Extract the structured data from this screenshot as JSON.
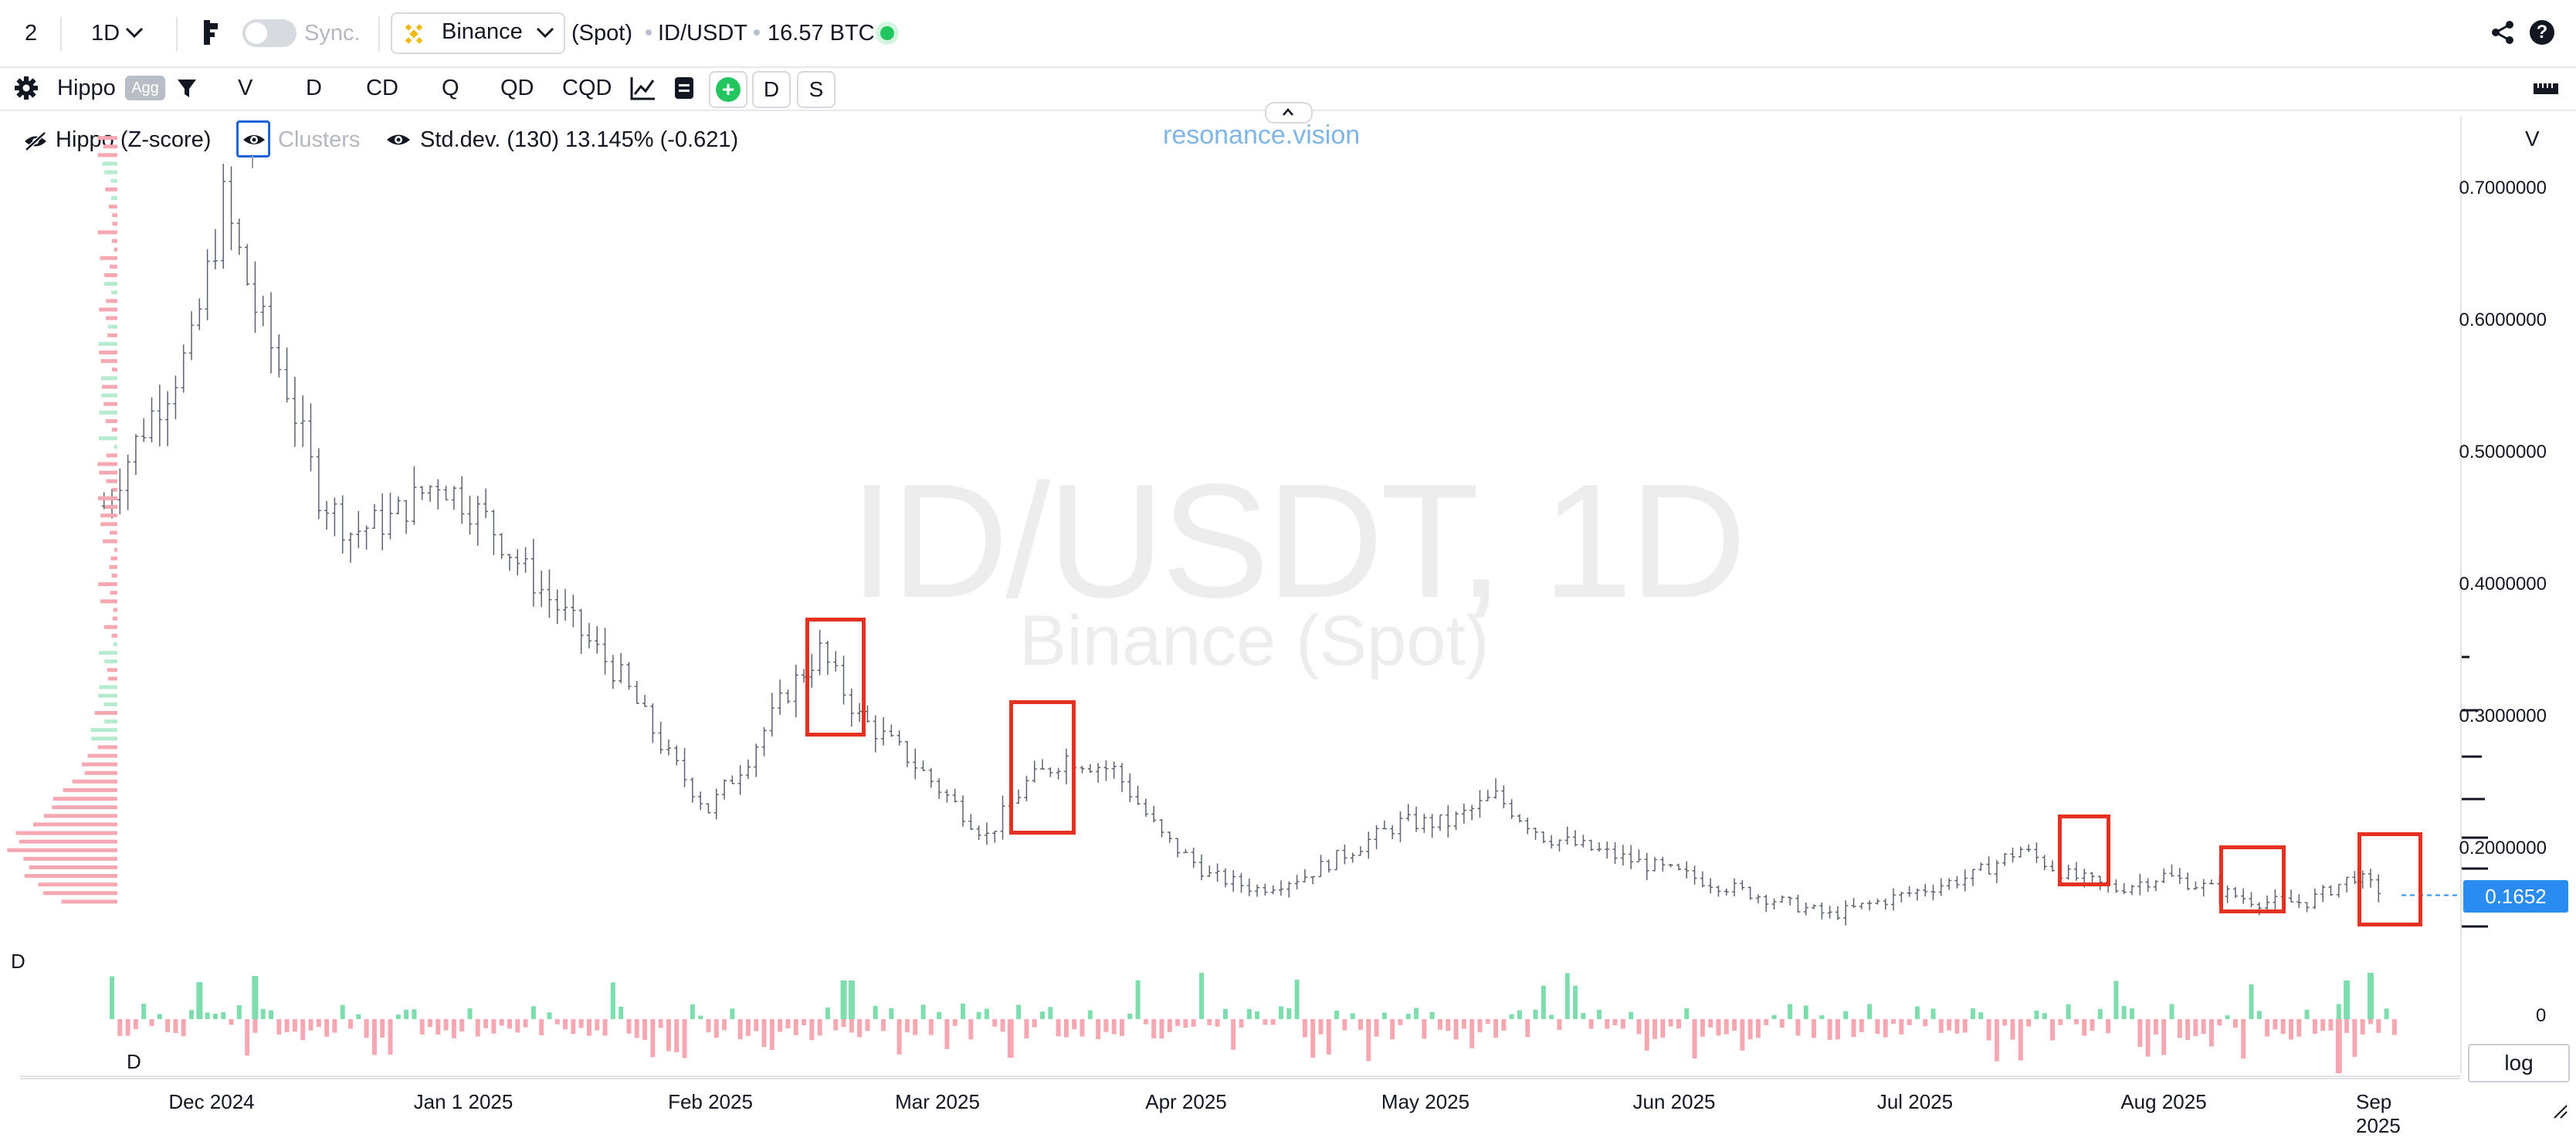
{
  "topbar": {
    "layout_count": "2",
    "interval": "1D",
    "sync_label": "Sync.",
    "exchange": "Binance",
    "market": "(Spot)",
    "pair": "ID/USDT",
    "volume": "16.57 BTC",
    "status_color": "#22c55e"
  },
  "toolbar": {
    "indicator": "Hippo",
    "agg_badge": "Agg",
    "tabs": [
      "V",
      "D",
      "CD",
      "Q",
      "QD",
      "CQD"
    ],
    "d_button": "D",
    "s_button": "S"
  },
  "legend": {
    "hippo": "Hippo (Z-score)",
    "clusters": "Clusters",
    "stddev": "Std.dev. (130) 13.145% (-0.621)",
    "brand": "resonance.vision"
  },
  "watermark": {
    "title": "ID/USDT, 1D",
    "subtitle": "Binance (Spot)"
  },
  "price_axis": {
    "unit_label": "V",
    "ticks": [
      "0.7000000",
      "0.6000000",
      "0.5000000",
      "0.4000000",
      "0.3000000",
      "0.2000000"
    ],
    "current_price": "0.1652",
    "subpane_zero": "0",
    "log_button": "log"
  },
  "subpane": {
    "label_top": "D",
    "label_bottom": "D"
  },
  "time_axis": {
    "ticks": [
      "Dec 2024",
      "Jan 1 2025",
      "Feb 2025",
      "Mar 2025",
      "Apr 2025",
      "May 2025",
      "Jun 2025",
      "Jul 2025",
      "Aug 2025",
      "Sep 2025"
    ]
  },
  "chart_data": {
    "type": "line",
    "title": "ID/USDT, 1D",
    "ylim": [
      0.13,
      0.74
    ],
    "x": [
      "2024-11-20",
      "2024-11-25",
      "2024-12-01",
      "2024-12-05",
      "2024-12-09",
      "2024-12-13",
      "2024-12-17",
      "2024-12-21",
      "2024-12-26",
      "2025-01-01",
      "2025-01-07",
      "2025-01-12",
      "2025-01-18",
      "2025-01-24",
      "2025-01-30",
      "2025-02-04",
      "2025-02-09",
      "2025-02-14",
      "2025-02-18",
      "2025-02-23",
      "2025-03-01",
      "2025-03-06",
      "2025-03-11",
      "2025-03-16",
      "2025-03-21",
      "2025-03-27",
      "2025-04-02",
      "2025-04-08",
      "2025-04-14",
      "2025-04-20",
      "2025-04-26",
      "2025-05-02",
      "2025-05-08",
      "2025-05-14",
      "2025-05-20",
      "2025-05-26",
      "2025-06-01",
      "2025-06-07",
      "2025-06-13",
      "2025-06-19",
      "2025-06-25",
      "2025-07-01",
      "2025-07-07",
      "2025-07-13",
      "2025-07-19",
      "2025-07-25",
      "2025-07-31",
      "2025-08-06",
      "2025-08-12",
      "2025-08-18",
      "2025-08-24",
      "2025-08-30",
      "2025-09-03"
    ],
    "series": [
      {
        "values": [
          0.46,
          0.52,
          0.58,
          0.69,
          0.61,
          0.55,
          0.47,
          0.44,
          0.45,
          0.48,
          0.45,
          0.41,
          0.37,
          0.33,
          0.27,
          0.23,
          0.27,
          0.32,
          0.35,
          0.3,
          0.27,
          0.24,
          0.21,
          0.25,
          0.27,
          0.26,
          0.21,
          0.18,
          0.17,
          0.18,
          0.2,
          0.22,
          0.22,
          0.24,
          0.21,
          0.2,
          0.19,
          0.18,
          0.17,
          0.16,
          0.15,
          0.16,
          0.17,
          0.18,
          0.2,
          0.18,
          0.17,
          0.18,
          0.17,
          0.16,
          0.16,
          0.18,
          0.1652
        ]
      }
    ]
  }
}
